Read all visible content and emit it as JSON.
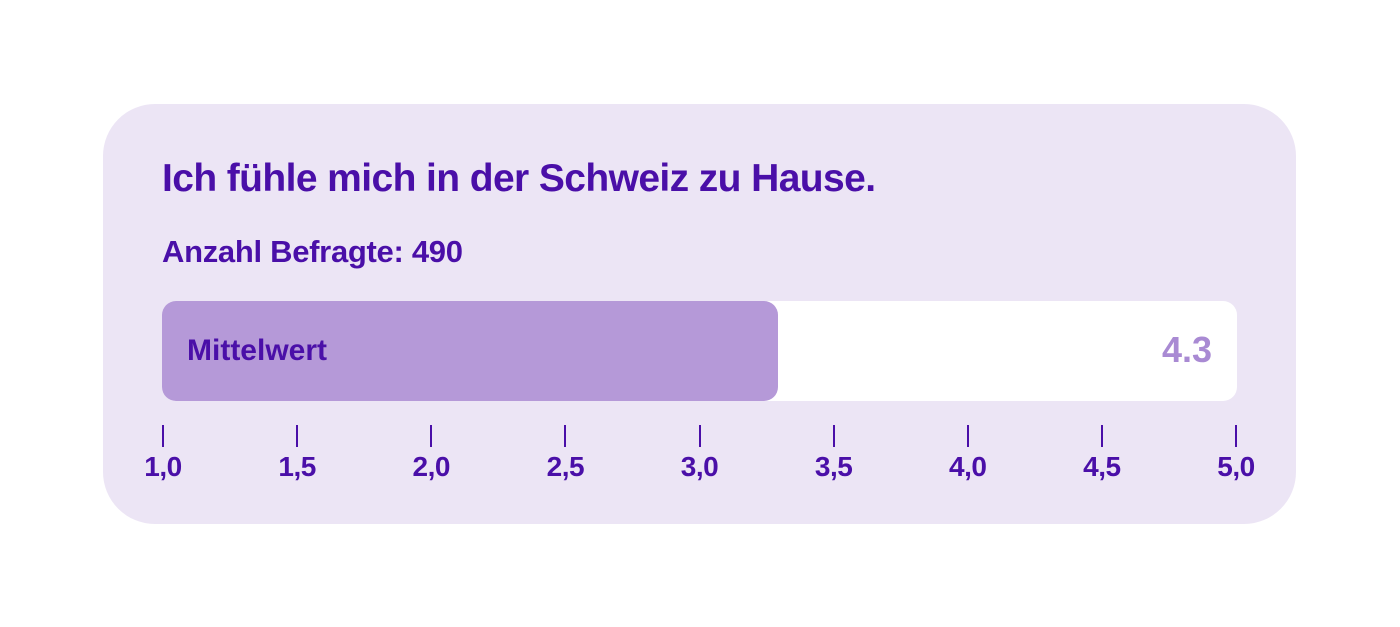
{
  "chart_data": {
    "type": "bar",
    "orientation": "horizontal",
    "title": "Ich fühle mich in der Schweiz zu Hause.",
    "subtitle": "Anzahl Befragte: 490",
    "categories": [
      "Mittelwert"
    ],
    "values": [
      4.3
    ],
    "value_label": "4.3",
    "xlim": [
      1.0,
      5.0
    ],
    "x_ticks": [
      1.0,
      1.5,
      2.0,
      2.5,
      3.0,
      3.5,
      4.0,
      4.5,
      5.0
    ],
    "x_tick_labels": [
      "1,0",
      "1,5",
      "2,0",
      "2,5",
      "3,0",
      "3,5",
      "4,0",
      "4,5",
      "5,0"
    ],
    "grid": false,
    "legend": "none",
    "colors": {
      "background": "#ece5f5",
      "bar": "#b599d8",
      "track": "#ffffff",
      "text": "#4a0fa8",
      "value": "#a98ad3"
    }
  }
}
